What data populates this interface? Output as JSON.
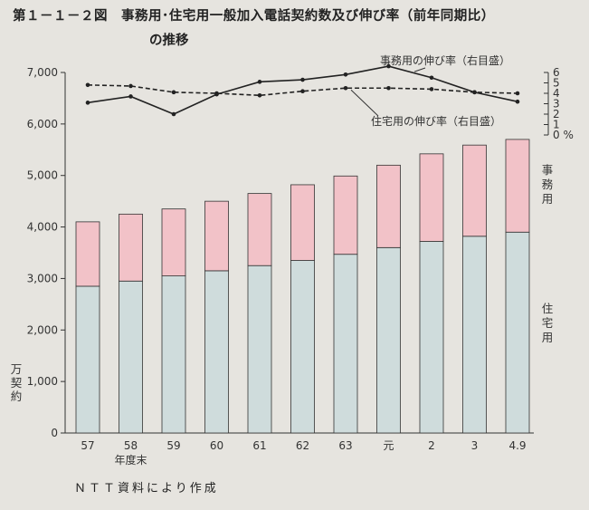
{
  "title_line1": "第１－１－２図　事務用･住宅用一般加入電話契約数及び伸び率（前年同期比）",
  "title_line2": "の推移",
  "source": "ＮＴＴ資料により作成",
  "chart_data": {
    "type": "bar",
    "stacked": true,
    "categories": [
      "57",
      "58",
      "59",
      "60",
      "61",
      "62",
      "63",
      "元",
      "2",
      "3",
      "4.9"
    ],
    "x_sublabel": "年度末",
    "ylim": [
      0,
      7000
    ],
    "yticks": [
      "0",
      "1,000",
      "2,000",
      "3,000",
      "4,000",
      "5,000",
      "6,000",
      "7,000"
    ],
    "ylabel": "万契約",
    "series": [
      {
        "name": "住宅用",
        "color": "#cfdcdc",
        "values": [
          2850,
          2950,
          3050,
          3150,
          3250,
          3350,
          3470,
          3600,
          3720,
          3820,
          3900
        ]
      },
      {
        "name": "事務用",
        "color": "#f2c2c8",
        "values": [
          1250,
          1300,
          1300,
          1350,
          1400,
          1470,
          1520,
          1600,
          1700,
          1770,
          1800
        ]
      }
    ],
    "rate_axis": {
      "ylim": [
        0,
        6
      ],
      "ticks": [
        "0 %",
        "1",
        "2",
        "3",
        "4",
        "5",
        "6"
      ]
    },
    "rate_series": [
      {
        "name": "事務用の伸び率（右目盛）",
        "style": "solid",
        "values": [
          3.1,
          3.7,
          2.0,
          3.9,
          5.1,
          5.3,
          5.8,
          6.6,
          5.5,
          4.1,
          3.2
        ]
      },
      {
        "name": "住宅用の伸び率（右目盛）",
        "style": "dashed",
        "values": [
          4.8,
          4.7,
          4.1,
          4.0,
          3.8,
          4.2,
          4.5,
          4.5,
          4.4,
          4.1,
          4.0
        ]
      }
    ]
  }
}
